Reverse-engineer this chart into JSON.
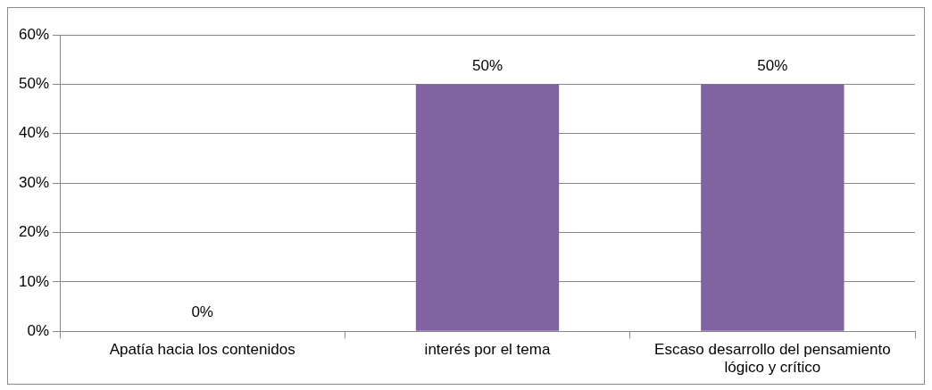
{
  "chart_data": {
    "type": "bar",
    "categories": [
      "Apatía hacia los contenidos",
      "interés por el tema",
      "Escaso desarrollo del pensamiento lógico y crítico"
    ],
    "values": [
      0,
      50,
      50
    ],
    "color": "#8064a2",
    "value_labels": [
      "0%",
      "50%",
      "50%"
    ],
    "ylim": [
      0,
      60
    ],
    "yticks": [
      {
        "value": 0,
        "label": "0%"
      },
      {
        "value": 10,
        "label": "10%"
      },
      {
        "value": 20,
        "label": "20%"
      },
      {
        "value": 30,
        "label": "30%"
      },
      {
        "value": 40,
        "label": "40%"
      },
      {
        "value": 50,
        "label": "50%"
      },
      {
        "value": 60,
        "label": "60%"
      }
    ],
    "grid": "y",
    "legend": false
  }
}
